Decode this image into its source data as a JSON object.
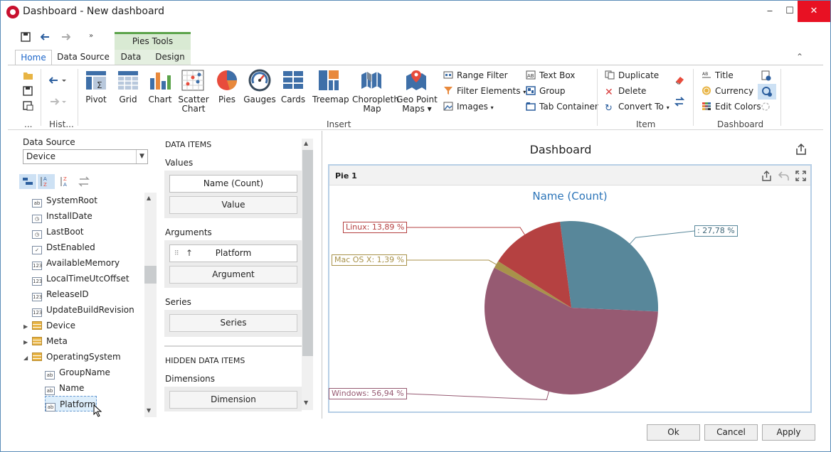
{
  "window": {
    "title": "Dashboard - New dashboard",
    "minimize": "‒",
    "maximize": "☐",
    "close": "✕"
  },
  "ribbon": {
    "context_header": "Pies Tools",
    "tabs": [
      "Home",
      "Data Source",
      "Data",
      "Design"
    ],
    "active_tab": "Home",
    "history_group": "Hist...",
    "file_group": "...",
    "insert_items": [
      {
        "label": "Pivot",
        "icon": "pivot-icon"
      },
      {
        "label": "Grid",
        "icon": "grid-icon"
      },
      {
        "label": "Chart",
        "icon": "chart-icon"
      },
      {
        "label": "Scatter\nChart",
        "icon": "scatter-chart-icon"
      },
      {
        "label": "Pies",
        "icon": "pies-icon"
      },
      {
        "label": "Gauges",
        "icon": "gauges-icon"
      },
      {
        "label": "Cards",
        "icon": "cards-icon"
      },
      {
        "label": "Treemap",
        "icon": "treemap-icon"
      },
      {
        "label": "Choropleth\nMap",
        "icon": "choropleth-map-icon"
      },
      {
        "label": "Geo Point\nMaps ▾",
        "icon": "geo-point-maps-icon"
      }
    ],
    "filter_items": {
      "range_filter": "Range Filter",
      "filter_elements": "Filter Elements",
      "images": "Images"
    },
    "layout_items": {
      "text_box": "Text Box",
      "group": "Group",
      "tab_container": "Tab Container"
    },
    "insert_group": "Insert",
    "item_items": {
      "duplicate": "Duplicate",
      "delete": "Delete",
      "convert_to": "Convert To"
    },
    "item_group": "Item",
    "dashboard_items": {
      "title": "Title",
      "currency": "Currency",
      "edit_colors": "Edit Colors"
    },
    "dashboard_group": "Dashboard"
  },
  "data_source": {
    "label": "Data Source",
    "value": "Device",
    "tree": [
      {
        "label": "SystemRoot",
        "type": "ab"
      },
      {
        "label": "InstallDate",
        "type": "date"
      },
      {
        "label": "LastBoot",
        "type": "date"
      },
      {
        "label": "DstEnabled",
        "type": "bool"
      },
      {
        "label": "AvailableMemory",
        "type": "num"
      },
      {
        "label": "LocalTimeUtcOffset",
        "type": "num"
      },
      {
        "label": "ReleaseID",
        "type": "num"
      },
      {
        "label": "UpdateBuildRevision",
        "type": "num"
      },
      {
        "label": "Device",
        "type": "table"
      },
      {
        "label": "Meta",
        "type": "table"
      },
      {
        "label": "OperatingSystem",
        "type": "table"
      },
      {
        "label": "GroupName",
        "type": "ab"
      },
      {
        "label": "Name",
        "type": "ab"
      },
      {
        "label": "Platform",
        "type": "ab"
      }
    ]
  },
  "data_items": {
    "header": "DATA ITEMS",
    "values_label": "Values",
    "values_item": "Name (Count)",
    "values_placeholder": "Value",
    "arguments_label": "Arguments",
    "arguments_item": "Platform",
    "arguments_placeholder": "Argument",
    "series_label": "Series",
    "series_placeholder": "Series",
    "hidden_header": "HIDDEN DATA ITEMS",
    "dimensions_label": "Dimensions",
    "dimensions_placeholder": "Dimension"
  },
  "dashboard": {
    "title": "Dashboard",
    "item_name": "Pie 1",
    "pie_title": "Name (Count)"
  },
  "chart_data": {
    "type": "pie",
    "title": "Name (Count)",
    "categories": [
      "",
      "Windows",
      "Mac OS X",
      "Linux"
    ],
    "values": [
      27.78,
      56.94,
      1.39,
      13.89
    ],
    "labels": [
      ": 27,78 %",
      "Windows: 56,94 %",
      "Mac OS X: 1,39 %",
      "Linux: 13,89 %"
    ],
    "colors": [
      "#58879a",
      "#965a72",
      "#a8924a",
      "#b54141"
    ]
  },
  "footer": {
    "ok": "Ok",
    "cancel": "Cancel",
    "apply": "Apply"
  }
}
